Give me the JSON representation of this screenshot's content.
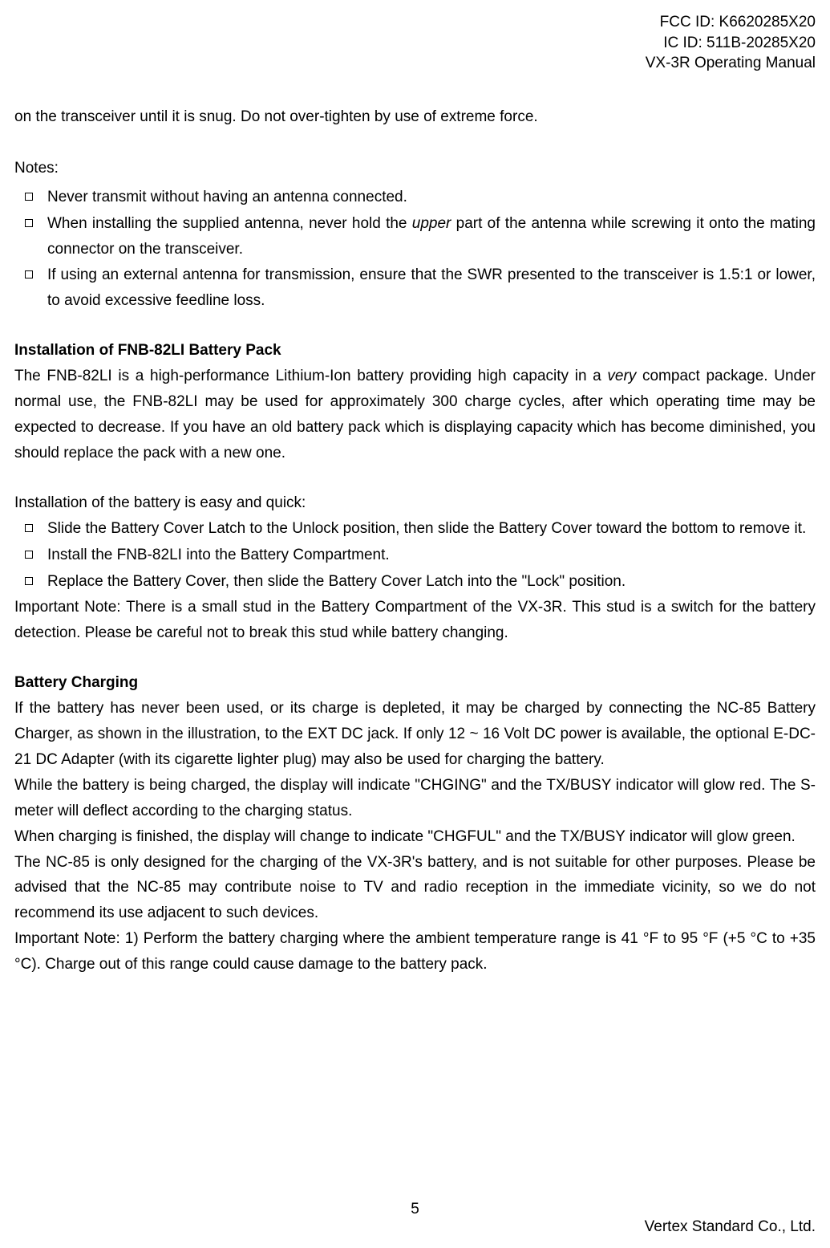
{
  "header": {
    "fcc_id": "FCC ID: K6620285X20",
    "ic_id": "IC ID: 511B-20285X20",
    "manual_title": "VX-3R Operating Manual"
  },
  "intro_line": "on the transceiver until it is snug. Do not over-tighten by use of extreme force.",
  "notes": {
    "heading": "Notes:",
    "items": [
      {
        "text": "Never transmit without having an antenna connected."
      },
      {
        "prefix": "When installing the supplied antenna, never hold the ",
        "italic": "upper",
        "suffix": " part of the antenna while screwing it onto the mating connector on the transceiver."
      },
      {
        "text": "If using an external antenna for transmission, ensure that the SWR presented to the transceiver is 1.5:1 or lower, to avoid excessive feedline loss."
      }
    ]
  },
  "battery_install": {
    "heading": "Installation of FNB-82LI Battery Pack",
    "para1_prefix": "The FNB-82LI is a high-performance Lithium-Ion battery providing high capacity in a ",
    "para1_italic": "very",
    "para1_suffix": " compact package. Under normal use, the FNB-82LI may be used for approximately 300 charge cycles, after which operating time may be expected to decrease. If you have an old battery pack which is displaying capacity which has become diminished, you should replace the pack with a new one.",
    "para2": "Installation of the battery is easy and quick:",
    "items": [
      "Slide the Battery Cover Latch to the Unlock position, then slide the Battery Cover toward the bottom to remove it.",
      "Install the FNB-82LI into the Battery Compartment.",
      "Replace the Battery Cover, then slide the Battery Cover Latch into the \"Lock\" position."
    ],
    "note": "Important Note: There is a small stud in the Battery Compartment of the VX-3R. This stud is a switch for the battery detection. Please be careful not to break this stud while battery changing."
  },
  "battery_charging": {
    "heading": "Battery Charging",
    "para1": "If the battery has never been used, or its charge is depleted, it may be charged by connecting the NC-85 Battery Charger, as shown in the illustration, to the EXT DC jack. If only 12 ~ 16 Volt DC power is available, the optional E-DC-21 DC Adapter (with its cigarette lighter plug) may also be used for charging the battery.",
    "para2": "While the battery is being charged, the display will indicate \"CHGING\" and the TX/BUSY indicator will glow red. The S-meter will deflect according to the charging status.",
    "para3": "When charging is finished, the display will change to indicate \"CHGFUL\" and the TX/BUSY indicator will glow green.",
    "para4": "The NC-85 is only designed for the charging of the VX-3R's battery, and is not suitable for other purposes. Please be advised that the NC-85 may contribute noise to TV and radio reception in the immediate vicinity, so we do not recommend its use adjacent to such devices.",
    "note": "Important Note: 1) Perform the battery charging where the ambient temperature range is 41 °F to 95 °F (+5 °C to +35 °C). Charge out of this range could cause damage to the battery pack."
  },
  "page_number": "5",
  "footer_company": "Vertex Standard Co., Ltd."
}
